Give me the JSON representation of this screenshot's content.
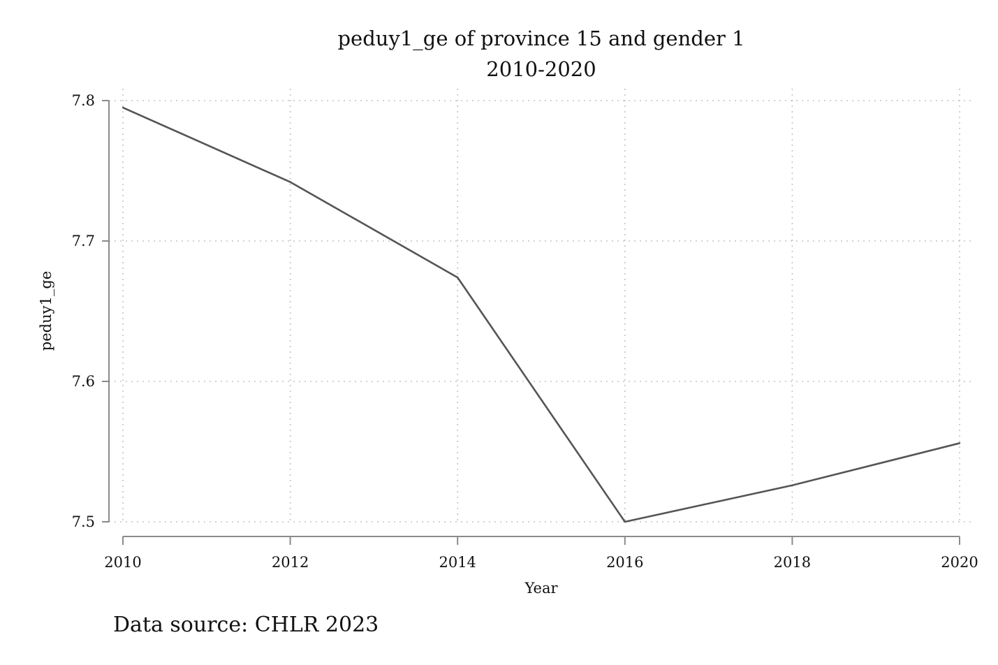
{
  "chart_data": {
    "type": "line",
    "title": "peduy1_ge of province 15 and gender 1",
    "subtitle": "2010-2020",
    "xlabel": "Year",
    "ylabel": "peduy1_ge",
    "x": [
      2010,
      2012,
      2014,
      2016,
      2018,
      2020
    ],
    "series": [
      {
        "values": [
          7.795,
          7.742,
          7.674,
          7.5,
          7.526,
          7.556
        ]
      }
    ],
    "xlim": [
      2010,
      2020
    ],
    "ylim": [
      7.5,
      7.8
    ],
    "x_ticks": [
      "2010",
      "2012",
      "2014",
      "2016",
      "2018",
      "2020"
    ],
    "y_ticks": [
      "7.5",
      "7.6",
      "7.7",
      "7.8"
    ],
    "grid": true,
    "line_color": "#555555",
    "note": "Data source: CHLR 2023"
  }
}
